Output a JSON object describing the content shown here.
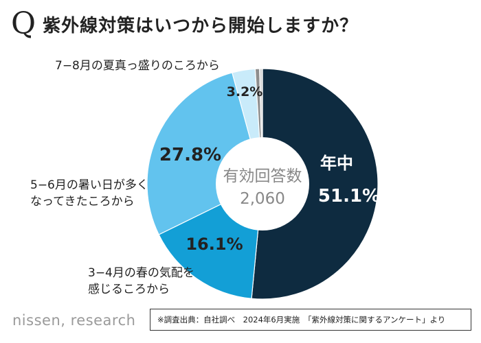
{
  "header": {
    "q_mark": "Q",
    "title": "紫外線対策はいつから開始しますか？"
  },
  "chart_data": {
    "type": "pie",
    "center_label": "有効回答数",
    "center_value": "2,060",
    "slices": [
      {
        "category": "年中",
        "value": 51.1,
        "label": "51.1%",
        "color": "#0e2b40"
      },
      {
        "category_lines": [
          "3−4月の春の気配を",
          "感じるころから"
        ],
        "value": 16.1,
        "label": "16.1%",
        "color": "#139fd6"
      },
      {
        "category_lines": [
          "5−6月の暑い日が多く",
          "なってきたころから"
        ],
        "value": 27.8,
        "label": "27.8%",
        "color": "#62c3ee"
      },
      {
        "category": "7−8月の夏真っ盛りのころから",
        "value": 3.2,
        "label": "3.2%",
        "color": "#c9ebfa"
      },
      {
        "category": "",
        "value": 0.6,
        "label": "",
        "color": "#8e8e8e"
      },
      {
        "category": "",
        "value": 0.4,
        "label": "",
        "color": "#d7d7d7"
      }
    ]
  },
  "footer": {
    "logo": "nissen, research",
    "source": "※調査出典：自社調べ　2024年6月実施　「紫外線対策に関するアンケート」より"
  }
}
